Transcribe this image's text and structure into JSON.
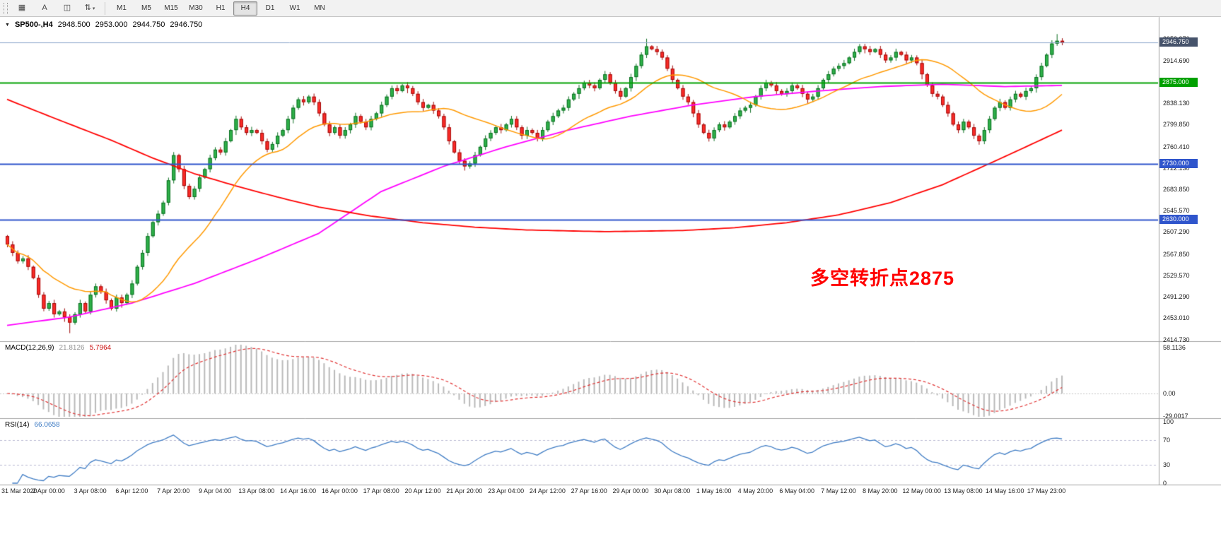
{
  "toolbar": {
    "icon_buttons": [
      {
        "name": "candlestick-chart-icon",
        "glyph": "▦",
        "caret": false
      },
      {
        "name": "text-cursor-icon",
        "glyph": "A",
        "caret": false
      },
      {
        "name": "chart-window-icon",
        "glyph": "◫",
        "caret": false
      },
      {
        "name": "cycle-arrows-icon",
        "glyph": "⇅",
        "caret": true
      }
    ],
    "timeframes": {
      "items": [
        "M1",
        "M5",
        "M15",
        "M30",
        "H1",
        "H4",
        "D1",
        "W1",
        "MN"
      ],
      "active": "H4"
    }
  },
  "chart": {
    "header": {
      "symbol": "SP500-,H4",
      "open": "2948.500",
      "high": "2953.000",
      "low": "2944.750",
      "close": "2946.750"
    },
    "annotation": {
      "text": "多空转折点2875",
      "color": "#ff0000"
    }
  },
  "indicators": {
    "macd": {
      "title": "MACD(12,26,9)",
      "value_main": "21.8126",
      "value_signal": "5.7964"
    },
    "rsi": {
      "title": "RSI(14)",
      "value": "66.0658"
    }
  },
  "chart_data": {
    "type": "candlestick",
    "symbol": "SP500-",
    "timeframe": "H4",
    "current_bar": {
      "open": 2948.5,
      "high": 2953.0,
      "low": 2944.75,
      "close": 2946.75
    },
    "y_ticks": [
      {
        "text": "2952.970",
        "price": 2952.97
      },
      {
        "text": "2914.690",
        "price": 2914.69
      },
      {
        "text": "2838.130",
        "price": 2838.13
      },
      {
        "text": "2799.850",
        "price": 2799.85
      },
      {
        "text": "2760.410",
        "price": 2760.41
      },
      {
        "text": "2722.130",
        "price": 2722.13
      },
      {
        "text": "2683.850",
        "price": 2683.85
      },
      {
        "text": "2645.570",
        "price": 2645.57
      },
      {
        "text": "2607.290",
        "price": 2607.29
      },
      {
        "text": "2567.850",
        "price": 2567.85
      },
      {
        "text": "2529.570",
        "price": 2529.57
      },
      {
        "text": "2491.290",
        "price": 2491.29
      },
      {
        "text": "2453.010",
        "price": 2453.01
      },
      {
        "text": "2414.730",
        "price": 2414.73
      }
    ],
    "hlines": [
      {
        "price": 2946.75,
        "label": "2946.750",
        "line_color": "#8fa8cc",
        "box_color": "#46536b",
        "width": 1,
        "role": "current-price"
      },
      {
        "price": 2875.0,
        "label": "2875.000",
        "line_color": "#00a000",
        "box_color": "#00a000",
        "width": 2,
        "role": "pivot-level"
      },
      {
        "price": 2730.0,
        "label": "2730.000",
        "line_color": "#2f55cc",
        "box_color": "#2f55cc",
        "width": 2,
        "role": "support-level"
      },
      {
        "price": 2630.0,
        "label": "2630.000",
        "line_color": "#2f55cc",
        "box_color": "#2f55cc",
        "width": 2,
        "role": "support-level"
      }
    ],
    "x_ticks": [
      {
        "bar": 0,
        "text": "31 Mar 2020"
      },
      {
        "bar": 8,
        "text": "2 Apr 00:00"
      },
      {
        "bar": 16,
        "text": "3 Apr 08:00"
      },
      {
        "bar": 24,
        "text": "6 Apr 12:00"
      },
      {
        "bar": 32,
        "text": "7 Apr 20:00"
      },
      {
        "bar": 40,
        "text": "9 Apr 04:00"
      },
      {
        "bar": 48,
        "text": "13 Apr 08:00"
      },
      {
        "bar": 56,
        "text": "14 Apr 16:00"
      },
      {
        "bar": 64,
        "text": "16 Apr 00:00"
      },
      {
        "bar": 72,
        "text": "17 Apr 08:00"
      },
      {
        "bar": 80,
        "text": "20 Apr 12:00"
      },
      {
        "bar": 88,
        "text": "21 Apr 20:00"
      },
      {
        "bar": 96,
        "text": "23 Apr 04:00"
      },
      {
        "bar": 104,
        "text": "24 Apr 12:00"
      },
      {
        "bar": 112,
        "text": "27 Apr 16:00"
      },
      {
        "bar": 120,
        "text": "29 Apr 00:00"
      },
      {
        "bar": 128,
        "text": "30 Apr 08:00"
      },
      {
        "bar": 136,
        "text": "1 May 16:00"
      },
      {
        "bar": 144,
        "text": "4 May 20:00"
      },
      {
        "bar": 152,
        "text": "6 May 04:00"
      },
      {
        "bar": 160,
        "text": "7 May 12:00"
      },
      {
        "bar": 168,
        "text": "8 May 20:00"
      },
      {
        "bar": 176,
        "text": "12 May 00:00"
      },
      {
        "bar": 184,
        "text": "13 May 08:00"
      },
      {
        "bar": 192,
        "text": "14 May 16:00"
      },
      {
        "bar": 200,
        "text": "17 May 23:00"
      }
    ],
    "candles": {
      "first_open": 2600,
      "closes": [
        2585,
        2570,
        2555,
        2560,
        2545,
        2525,
        2495,
        2470,
        2480,
        2460,
        2465,
        2455,
        2445,
        2460,
        2480,
        2465,
        2495,
        2510,
        2500,
        2485,
        2470,
        2490,
        2480,
        2495,
        2515,
        2545,
        2570,
        2600,
        2625,
        2640,
        2660,
        2700,
        2745,
        2720,
        2690,
        2670,
        2685,
        2705,
        2720,
        2740,
        2755,
        2750,
        2770,
        2790,
        2810,
        2795,
        2785,
        2790,
        2785,
        2770,
        2755,
        2765,
        2780,
        2790,
        2810,
        2830,
        2845,
        2840,
        2850,
        2840,
        2820,
        2800,
        2785,
        2795,
        2780,
        2790,
        2800,
        2815,
        2805,
        2795,
        2810,
        2820,
        2835,
        2850,
        2865,
        2860,
        2870,
        2865,
        2855,
        2840,
        2830,
        2835,
        2825,
        2815,
        2795,
        2770,
        2750,
        2735,
        2725,
        2730,
        2745,
        2760,
        2775,
        2785,
        2795,
        2790,
        2800,
        2810,
        2795,
        2780,
        2790,
        2785,
        2775,
        2790,
        2805,
        2815,
        2825,
        2830,
        2845,
        2855,
        2865,
        2875,
        2870,
        2865,
        2880,
        2890,
        2875,
        2860,
        2850,
        2865,
        2885,
        2905,
        2925,
        2940,
        2935,
        2930,
        2920,
        2900,
        2880,
        2865,
        2850,
        2840,
        2820,
        2800,
        2785,
        2775,
        2790,
        2800,
        2795,
        2805,
        2815,
        2825,
        2830,
        2835,
        2850,
        2865,
        2875,
        2870,
        2860,
        2855,
        2860,
        2870,
        2865,
        2855,
        2845,
        2850,
        2865,
        2880,
        2890,
        2900,
        2905,
        2910,
        2920,
        2930,
        2940,
        2935,
        2930,
        2935,
        2925,
        2915,
        2920,
        2930,
        2925,
        2915,
        2920,
        2910,
        2890,
        2870,
        2855,
        2850,
        2835,
        2820,
        2800,
        2790,
        2805,
        2795,
        2780,
        2770,
        2790,
        2810,
        2830,
        2840,
        2830,
        2845,
        2855,
        2850,
        2860,
        2865,
        2885,
        2905,
        2925,
        2945,
        2950,
        2946.75
      ]
    },
    "moving_averages": {
      "orange_sma_period": 20,
      "red_anchors": [
        [
          0,
          2845
        ],
        [
          10,
          2808
        ],
        [
          20,
          2772
        ],
        [
          28,
          2740
        ],
        [
          36,
          2712
        ],
        [
          44,
          2690
        ],
        [
          52,
          2670
        ],
        [
          60,
          2652
        ],
        [
          70,
          2636
        ],
        [
          80,
          2624
        ],
        [
          90,
          2616
        ],
        [
          100,
          2611
        ],
        [
          115,
          2608
        ],
        [
          130,
          2610
        ],
        [
          140,
          2615
        ],
        [
          150,
          2624
        ],
        [
          160,
          2638
        ],
        [
          170,
          2660
        ],
        [
          180,
          2692
        ],
        [
          190,
          2734
        ],
        [
          197,
          2764
        ],
        [
          203,
          2790
        ]
      ],
      "magenta_anchors": [
        [
          0,
          2440
        ],
        [
          12,
          2455
        ],
        [
          24,
          2480
        ],
        [
          36,
          2515
        ],
        [
          48,
          2558
        ],
        [
          60,
          2605
        ],
        [
          72,
          2680
        ],
        [
          84,
          2725
        ],
        [
          96,
          2760
        ],
        [
          108,
          2790
        ],
        [
          120,
          2815
        ],
        [
          132,
          2835
        ],
        [
          144,
          2850
        ],
        [
          156,
          2860
        ],
        [
          168,
          2868
        ],
        [
          180,
          2872
        ],
        [
          192,
          2868
        ],
        [
          203,
          2870
        ]
      ]
    },
    "macd": {
      "params": [
        12,
        26,
        9
      ],
      "current_main": 21.8126,
      "current_signal": 5.7964,
      "y_ticks": [
        {
          "text": "58.1136",
          "v": 58.1136
        },
        {
          "text": "0.00",
          "v": 0
        },
        {
          "text": "-29.0017",
          "v": -29.0017
        }
      ]
    },
    "rsi": {
      "period": 14,
      "current": 66.0658,
      "levels": [
        70,
        30
      ],
      "y_ticks": [
        {
          "text": "100",
          "v": 100
        },
        {
          "text": "70",
          "v": 70
        },
        {
          "text": "30",
          "v": 30
        },
        {
          "text": "0",
          "v": 0
        }
      ]
    },
    "colors": {
      "candle_up": "#2fb24a",
      "candle_up_border": "#0c6e22",
      "candle_down": "#fd2b27",
      "candle_down_border": "#9e0b0b",
      "ma_red": "#ff0000",
      "ma_magenta": "#ff00ff",
      "ma_orange": "#ff9900",
      "macd_hist": "#b9b9b9",
      "macd_signal": "#e03131",
      "rsi_line": "#3f7cc4"
    }
  }
}
